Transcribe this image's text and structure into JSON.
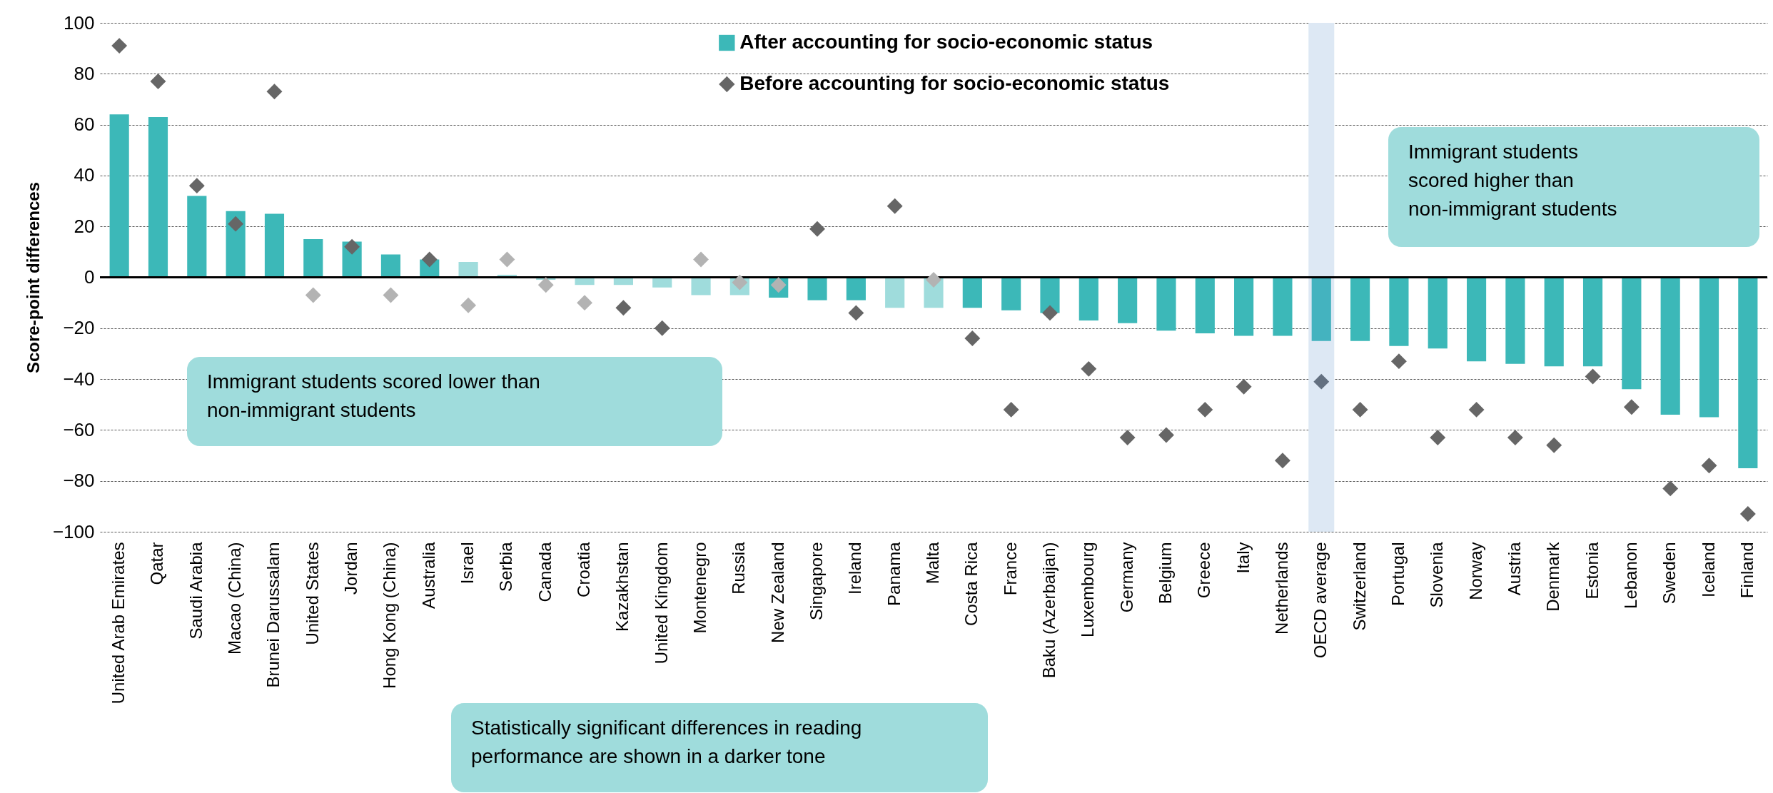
{
  "chart_data": {
    "type": "bar",
    "ylabel": "Score-point differences",
    "categories": [
      "United Arab Emirates",
      "Qatar",
      "Saudi Arabia",
      "Macao (China)",
      "Brunei Darussalam",
      "United States",
      "Jordan",
      "Hong Kong (China)",
      "Australia",
      "Israel",
      "Serbia",
      "Canada",
      "Croatia",
      "Kazakhstan",
      "United Kingdom",
      "Montenegro",
      "Russia",
      "New Zealand",
      "Singapore",
      "Ireland",
      "Panama",
      "Malta",
      "Costa Rica",
      "France",
      "Baku (Azerbaijan)",
      "Luxembourg",
      "Germany",
      "Belgium",
      "Greece",
      "Italy",
      "Netherlands",
      "OECD average",
      "Switzerland",
      "Portugal",
      "Slovenia",
      "Norway",
      "Austria",
      "Denmark",
      "Estonia",
      "Lebanon",
      "Sweden",
      "Iceland",
      "Finland"
    ],
    "series": [
      {
        "name": "After accounting for socio-economic status",
        "type": "bar",
        "color": "#3cb8b8",
        "colors": [
          "#3cb8b8",
          "#3cb8b8",
          "#3cb8b8",
          "#3cb8b8",
          "#3cb8b8",
          "#3cb8b8",
          "#3cb8b8",
          "#3cb8b8",
          "#3cb8b8",
          "#9fdcdc",
          "#9fdcdc",
          "#9fdcdc",
          "#9fdcdc",
          "#9fdcdc",
          "#9fdcdc",
          "#9fdcdc",
          "#9fdcdc",
          "#3cb8b8",
          "#3cb8b8",
          "#3cb8b8",
          "#9fdcdc",
          "#9fdcdc",
          "#3cb8b8",
          "#3cb8b8",
          "#3cb8b8",
          "#3cb8b8",
          "#3cb8b8",
          "#3cb8b8",
          "#3cb8b8",
          "#3cb8b8",
          "#3cb8b8",
          "#44b3bf",
          "#3cb8b8",
          "#3cb8b8",
          "#3cb8b8",
          "#3cb8b8",
          "#3cb8b8",
          "#3cb8b8",
          "#3cb8b8",
          "#3cb8b8",
          "#3cb8b8",
          "#3cb8b8",
          "#3cb8b8"
        ],
        "values": [
          64,
          63,
          32,
          26,
          25,
          15,
          14,
          9,
          7,
          6,
          1,
          -1,
          -3,
          -3,
          -4,
          -7,
          -7,
          -8,
          -9,
          -9,
          -12,
          -12,
          -12,
          -13,
          -14,
          -17,
          -18,
          -21,
          -22,
          -23,
          -23,
          -25,
          -25,
          -27,
          -28,
          -33,
          -34,
          -35,
          -35,
          -44,
          -54,
          -55,
          -75
        ]
      },
      {
        "name": "Before accounting for socio-economic status",
        "type": "scatter",
        "marker": "diamond",
        "color": "#666666",
        "colors": [
          "#666666",
          "#666666",
          "#666666",
          "#666666",
          "#666666",
          "#b3b3b3",
          "#666666",
          "#b3b3b3",
          "#666666",
          "#b3b3b3",
          "#b3b3b3",
          "#b3b3b3",
          "#b3b3b3",
          "#666666",
          "#666666",
          "#b3b3b3",
          "#b3b3b3",
          "#b3b3b3",
          "#666666",
          "#666666",
          "#666666",
          "#b3b3b3",
          "#666666",
          "#666666",
          "#666666",
          "#666666",
          "#666666",
          "#666666",
          "#666666",
          "#666666",
          "#666666",
          "#637080",
          "#666666",
          "#666666",
          "#666666",
          "#666666",
          "#666666",
          "#666666",
          "#666666",
          "#666666",
          "#666666",
          "#666666",
          "#666666"
        ],
        "values": [
          91,
          77,
          36,
          21,
          73,
          -7,
          12,
          -7,
          7,
          -11,
          7,
          -3,
          -10,
          -12,
          -20,
          7,
          -2,
          -3,
          19,
          -14,
          28,
          -1,
          -24,
          -52,
          -14,
          -36,
          -63,
          -62,
          -52,
          -43,
          -72,
          -41,
          -52,
          -33,
          -63,
          -52,
          -63,
          -66,
          -39,
          -51,
          -83,
          -74,
          -93
        ]
      }
    ],
    "ylim": [
      -100,
      100
    ],
    "yticks": [
      -100,
      -80,
      -60,
      -40,
      -20,
      0,
      20,
      40,
      60,
      80,
      100
    ],
    "grid": "y",
    "legend": "top",
    "ref_lines": [
      {
        "axis": "y",
        "value": 0,
        "color": "#000000"
      }
    ],
    "bands": [
      {
        "axis": "x",
        "from": "OECD average",
        "to": "OECD average",
        "color": "#dde8f4"
      }
    ],
    "annotations": [
      "Immigrant students scored lower than non-immigrant students",
      "Immigrant students scored higher than non-immigrant students",
      "Statistically significant differences in reading performance are shown in a darker tone"
    ]
  }
}
